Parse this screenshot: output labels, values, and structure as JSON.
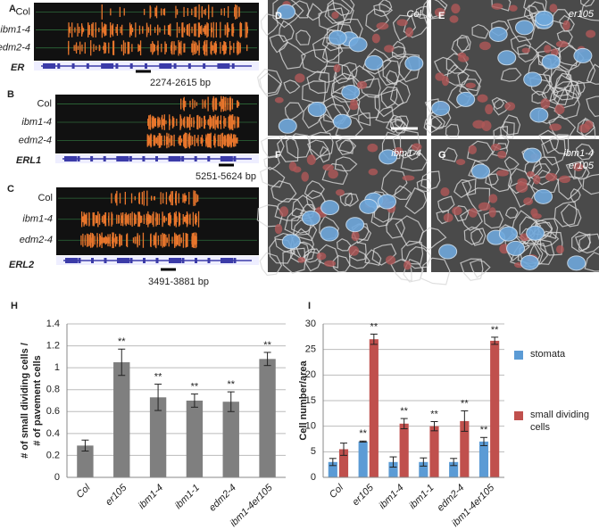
{
  "tracks": [
    {
      "label": "A",
      "gene": "ER",
      "region": "2274-2615 bp",
      "lines": [
        "Col",
        "ibm1-4",
        "edm2-4"
      ]
    },
    {
      "label": "B",
      "gene": "ERL1",
      "region": "5251-5624 bp",
      "lines": [
        "Col",
        "ibm1-4",
        "edm2-4"
      ]
    },
    {
      "label": "C",
      "gene": "ERL2",
      "region": "3491-3881 bp",
      "lines": [
        "Col",
        "ibm1-4",
        "edm2-4"
      ]
    }
  ],
  "micrographs": [
    {
      "label": "D",
      "genotype": [
        "Col"
      ]
    },
    {
      "label": "E",
      "genotype": [
        "er105"
      ]
    },
    {
      "label": "F",
      "genotype": [
        "ibm1-4"
      ]
    },
    {
      "label": "G",
      "genotype": [
        "ibm1-4",
        "er105"
      ]
    }
  ],
  "chart_data": [
    {
      "panel": "H",
      "type": "bar",
      "y_label": [
        "# of small dividing cells /",
        "# of pavement cells"
      ],
      "categories": [
        "Col",
        "er105",
        "ibm1-4",
        "ibm1-1",
        "edm2-4",
        "ibm1-4er105"
      ],
      "values": [
        0.29,
        1.05,
        0.73,
        0.7,
        0.69,
        1.08
      ],
      "errors": [
        0.05,
        0.12,
        0.12,
        0.06,
        0.09,
        0.06
      ],
      "significance": [
        null,
        "**",
        "**",
        "**",
        "**",
        "**"
      ],
      "color": "#7f7f7f",
      "ylim": [
        0,
        1.4
      ],
      "yticks": [
        0,
        0.2,
        0.4,
        0.6,
        0.8,
        1,
        1.2,
        1.4
      ],
      "grid": true
    },
    {
      "panel": "I",
      "type": "bar",
      "y_label": [
        "Cell number/area"
      ],
      "categories": [
        "Col",
        "er105",
        "ibm1-4",
        "ibm1-1",
        "edm2-4",
        "ibm1-4er105"
      ],
      "series": [
        {
          "name": "stomata",
          "color": "#5b9bd5",
          "values": [
            3,
            7,
            3,
            3,
            3,
            7
          ],
          "errors": [
            0.7,
            0.1,
            1,
            0.8,
            0.7,
            0.8
          ],
          "significance": [
            null,
            "**",
            null,
            null,
            null,
            "**"
          ]
        },
        {
          "name": "small dividing cells",
          "color": "#c0504d",
          "values": [
            5.5,
            27,
            10.5,
            10,
            11,
            26.7
          ],
          "errors": [
            1.2,
            1,
            1,
            0.9,
            2,
            0.7
          ],
          "significance": [
            null,
            "**",
            "**",
            "**",
            "**",
            "**"
          ]
        }
      ],
      "ylim": [
        0,
        30
      ],
      "yticks": [
        0,
        5,
        10,
        15,
        20,
        25,
        30
      ],
      "grid": true,
      "legend": "right"
    }
  ]
}
